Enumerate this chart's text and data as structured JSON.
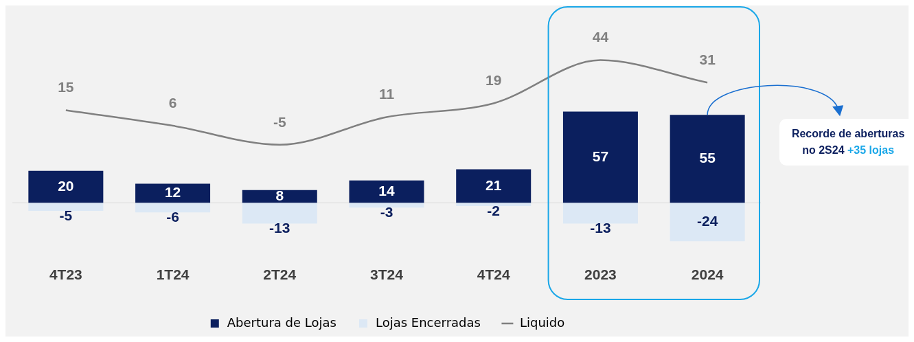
{
  "chart_data": {
    "type": "bar",
    "categories": [
      "4T23",
      "1T24",
      "2T24",
      "3T24",
      "4T24",
      "2023",
      "2024"
    ],
    "series": [
      {
        "name": "Abertura de Lojas",
        "color": "#0b1f5e",
        "values": [
          20,
          12,
          8,
          14,
          21,
          57,
          55
        ]
      },
      {
        "name": "Lojas Encerradas",
        "color": "#dce8f5",
        "values": [
          -5,
          -6,
          -13,
          -3,
          -2,
          -13,
          -24
        ]
      },
      {
        "name": "Liquido",
        "type": "line",
        "axis": "y2",
        "color": "#808080",
        "values": [
          15,
          6,
          -5,
          11,
          19,
          44,
          31
        ]
      }
    ],
    "stacked": true,
    "data_labels": true,
    "legend": "bottom",
    "marker": "none",
    "line_style": "solid",
    "grid": false,
    "tick_labels": "x",
    "annotations": [
      "Recorde de aberturas no 2S24",
      "+35 lojas"
    ]
  }
}
